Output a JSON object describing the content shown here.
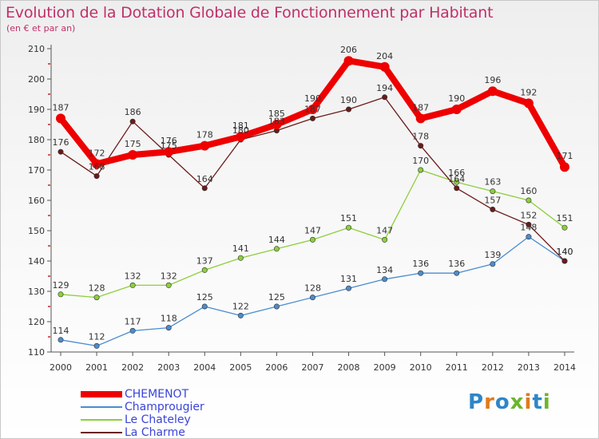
{
  "header": {
    "title": "Evolution de la Dotation Globale de Fonctionnement par Habitant",
    "subtitle": "(en € et par an)"
  },
  "logo": {
    "text": "Proxiti",
    "letter_colors": [
      "#2e86c8",
      "#e07b1a",
      "#2e86c8",
      "#6cb52d",
      "#e07b1a",
      "#2e86c8",
      "#6cb52d"
    ]
  },
  "chart_data": {
    "type": "line",
    "x": [
      2000,
      2001,
      2002,
      2003,
      2004,
      2005,
      2006,
      2007,
      2008,
      2009,
      2010,
      2011,
      2012,
      2013,
      2014
    ],
    "ylim": [
      110,
      210
    ],
    "yticks": [
      110,
      120,
      130,
      140,
      150,
      160,
      170,
      180,
      190,
      200,
      210
    ],
    "grid": false,
    "legend_position": "bottom-left",
    "series": [
      {
        "name": "CHEMENOT",
        "color": "#ee0000",
        "values": [
          187,
          172,
          175,
          176,
          178,
          181,
          185,
          190,
          206,
          204,
          187,
          190,
          196,
          192,
          171
        ],
        "emphasis": "thick"
      },
      {
        "name": "Champrougier",
        "color": "#4a8ccf",
        "values": [
          114,
          112,
          117,
          118,
          125,
          122,
          125,
          128,
          131,
          134,
          136,
          136,
          139,
          148,
          140
        ]
      },
      {
        "name": "Le Chateley",
        "color": "#8ccf3c",
        "values": [
          129,
          128,
          132,
          132,
          137,
          141,
          144,
          147,
          151,
          147,
          170,
          166,
          163,
          160,
          151
        ]
      },
      {
        "name": "La Charme",
        "color": "#6b1a1a",
        "values": [
          176,
          168,
          186,
          175,
          164,
          180,
          183,
          187,
          190,
          194,
          178,
          164,
          157,
          152,
          140
        ]
      }
    ]
  }
}
